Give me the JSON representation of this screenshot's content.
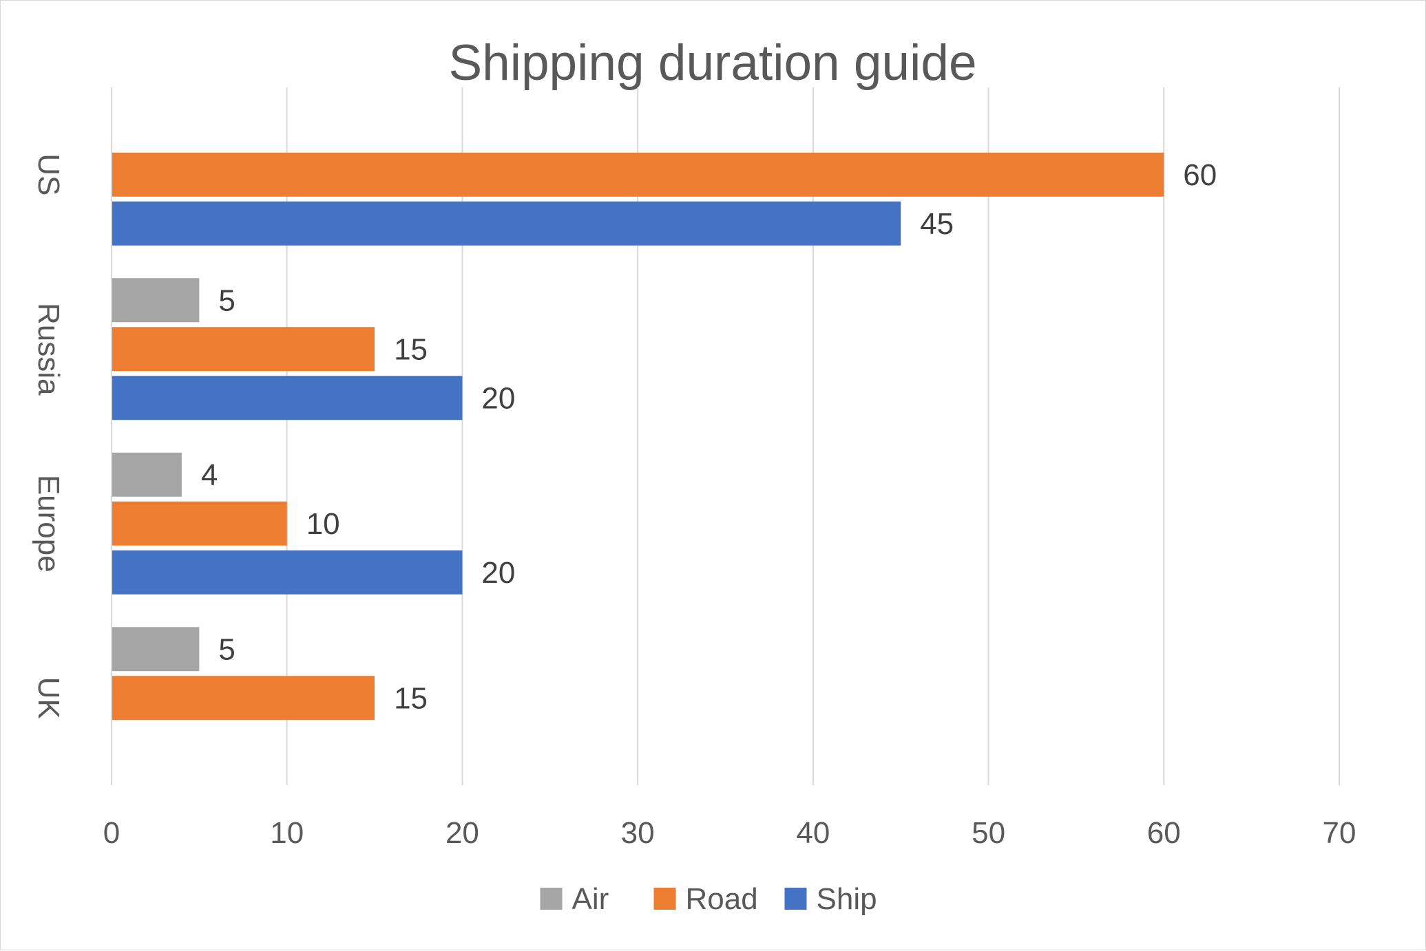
{
  "chart_data": {
    "type": "bar",
    "orientation": "horizontal",
    "title": "Shipping duration guide",
    "xlabel": "",
    "ylabel": "",
    "categories": [
      "UK",
      "Europe",
      "Russia",
      "US"
    ],
    "series": [
      {
        "name": "Air",
        "color": "#a5a5a5",
        "values": [
          5,
          4,
          5,
          null
        ]
      },
      {
        "name": "Road",
        "color": "#ed7d31",
        "values": [
          15,
          10,
          15,
          60
        ]
      },
      {
        "name": "Ship",
        "color": "#4472c4",
        "values": [
          null,
          20,
          20,
          45
        ]
      }
    ],
    "xlim": [
      0,
      70
    ],
    "xticks": [
      "0",
      "10",
      "20",
      "30",
      "40",
      "50",
      "60",
      "70"
    ],
    "gridlines": "vertical",
    "data_labels": true,
    "legend": "bottom"
  }
}
